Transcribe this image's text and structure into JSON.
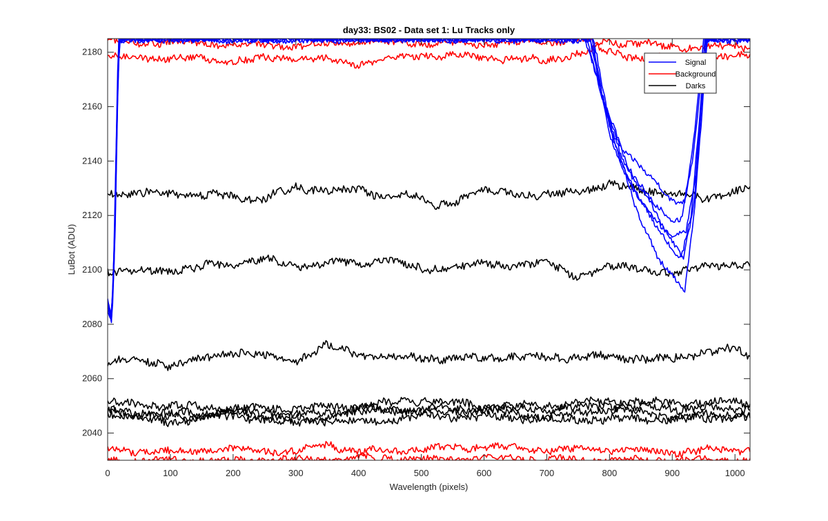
{
  "chart_data": {
    "type": "line",
    "title": "day33: BS02 - Data set 1: Lu Tracks only",
    "xlabel": "Wavelength (pixels)",
    "ylabel": "LuBot (ADU)",
    "xlim": [
      0,
      1024
    ],
    "ylim": [
      2030,
      2185
    ],
    "xticks": [
      0,
      100,
      200,
      300,
      400,
      500,
      600,
      700,
      800,
      900,
      1000
    ],
    "yticks": [
      2040,
      2060,
      2080,
      2100,
      2120,
      2140,
      2160,
      2180
    ],
    "grid": false,
    "legend_position": "top-right",
    "legend": [
      {
        "label": "Signal",
        "color": "#0000ff"
      },
      {
        "label": "Background",
        "color": "#ff0000"
      },
      {
        "label": "Darks",
        "color": "#000000"
      }
    ],
    "series": [
      {
        "group": "Signal",
        "color": "#0000ff",
        "noise": 1.0,
        "points": [
          [
            0,
            2088
          ],
          [
            5,
            2082
          ],
          [
            8,
            2090
          ],
          [
            12,
            2120
          ],
          [
            18,
            2185
          ],
          [
            760,
            2185
          ],
          [
            790,
            2162
          ],
          [
            820,
            2145
          ],
          [
            850,
            2138
          ],
          [
            880,
            2130
          ],
          [
            905,
            2124
          ],
          [
            920,
            2126
          ],
          [
            935,
            2150
          ],
          [
            950,
            2185
          ],
          [
            1024,
            2185
          ]
        ]
      },
      {
        "group": "Signal",
        "color": "#0000ff",
        "noise": 1.0,
        "points": [
          [
            0,
            2086
          ],
          [
            6,
            2080
          ],
          [
            9,
            2095
          ],
          [
            14,
            2150
          ],
          [
            17,
            2185
          ],
          [
            768,
            2185
          ],
          [
            795,
            2158
          ],
          [
            830,
            2136
          ],
          [
            860,
            2126
          ],
          [
            890,
            2114
          ],
          [
            915,
            2106
          ],
          [
            930,
            2120
          ],
          [
            945,
            2160
          ],
          [
            952,
            2185
          ],
          [
            1024,
            2185
          ]
        ]
      },
      {
        "group": "Signal",
        "color": "#0000ff",
        "noise": 1.0,
        "points": [
          [
            0,
            2085
          ],
          [
            5,
            2081
          ],
          [
            10,
            2100
          ],
          [
            15,
            2160
          ],
          [
            18,
            2185
          ],
          [
            772,
            2185
          ],
          [
            800,
            2150
          ],
          [
            835,
            2130
          ],
          [
            870,
            2118
          ],
          [
            900,
            2108
          ],
          [
            918,
            2104
          ],
          [
            935,
            2125
          ],
          [
            950,
            2170
          ],
          [
            955,
            2185
          ],
          [
            1024,
            2185
          ]
        ]
      },
      {
        "group": "Signal",
        "color": "#0000ff",
        "noise": 1.0,
        "points": [
          [
            0,
            2087
          ],
          [
            6,
            2083
          ],
          [
            11,
            2110
          ],
          [
            16,
            2170
          ],
          [
            19,
            2185
          ],
          [
            775,
            2185
          ],
          [
            805,
            2148
          ],
          [
            840,
            2128
          ],
          [
            875,
            2118
          ],
          [
            905,
            2112
          ],
          [
            922,
            2114
          ],
          [
            938,
            2135
          ],
          [
            948,
            2165
          ],
          [
            956,
            2185
          ],
          [
            1024,
            2185
          ]
        ]
      },
      {
        "group": "Signal",
        "color": "#0000ff",
        "noise": 1.0,
        "points": [
          [
            0,
            2089
          ],
          [
            7,
            2082
          ],
          [
            12,
            2115
          ],
          [
            17,
            2175
          ],
          [
            20,
            2185
          ],
          [
            770,
            2185
          ],
          [
            800,
            2152
          ],
          [
            840,
            2124
          ],
          [
            875,
            2106
          ],
          [
            905,
            2096
          ],
          [
            920,
            2092
          ],
          [
            935,
            2120
          ],
          [
            948,
            2160
          ],
          [
            955,
            2185
          ],
          [
            1024,
            2185
          ]
        ]
      },
      {
        "group": "Signal",
        "color": "#0000ff",
        "noise": 1.0,
        "points": [
          [
            0,
            2090
          ],
          [
            6,
            2084
          ],
          [
            11,
            2105
          ],
          [
            16,
            2165
          ],
          [
            19,
            2185
          ],
          [
            765,
            2185
          ],
          [
            792,
            2160
          ],
          [
            825,
            2140
          ],
          [
            860,
            2128
          ],
          [
            895,
            2118
          ],
          [
            915,
            2118
          ],
          [
            932,
            2140
          ],
          [
            946,
            2170
          ],
          [
            953,
            2185
          ],
          [
            1024,
            2185
          ]
        ]
      },
      {
        "group": "Background",
        "color": "#ff0000",
        "noise": 1.2,
        "points": [
          [
            0,
            2178
          ],
          [
            100,
            2178
          ],
          [
            200,
            2177
          ],
          [
            300,
            2178
          ],
          [
            400,
            2176
          ],
          [
            500,
            2179
          ],
          [
            600,
            2178
          ],
          [
            700,
            2177
          ],
          [
            780,
            2181
          ],
          [
            850,
            2178
          ],
          [
            950,
            2177
          ],
          [
            1024,
            2179
          ]
        ]
      },
      {
        "group": "Background",
        "color": "#ff0000",
        "noise": 1.2,
        "points": [
          [
            0,
            2184
          ],
          [
            200,
            2183
          ],
          [
            300,
            2182
          ],
          [
            400,
            2184
          ],
          [
            600,
            2183
          ],
          [
            700,
            2184
          ],
          [
            800,
            2184
          ],
          [
            900,
            2182
          ],
          [
            1024,
            2182
          ]
        ]
      },
      {
        "group": "Background",
        "color": "#ff0000",
        "noise": 1.2,
        "points": [
          [
            0,
            2034
          ],
          [
            100,
            2033
          ],
          [
            200,
            2034
          ],
          [
            300,
            2033
          ],
          [
            350,
            2036
          ],
          [
            400,
            2033
          ],
          [
            500,
            2034
          ],
          [
            600,
            2035
          ],
          [
            700,
            2034
          ],
          [
            800,
            2034
          ],
          [
            900,
            2033
          ],
          [
            1000,
            2034
          ],
          [
            1024,
            2034
          ]
        ]
      },
      {
        "group": "Background",
        "color": "#ff0000",
        "noise": 1.2,
        "points": [
          [
            0,
            2030
          ],
          [
            150,
            2030
          ],
          [
            300,
            2030
          ],
          [
            450,
            2031
          ],
          [
            500,
            2030
          ],
          [
            600,
            2031
          ],
          [
            800,
            2030
          ],
          [
            1024,
            2030
          ]
        ]
      },
      {
        "group": "Darks",
        "color": "#000000",
        "noise": 1.4,
        "points": [
          [
            0,
            2128
          ],
          [
            100,
            2128
          ],
          [
            200,
            2127
          ],
          [
            240,
            2126
          ],
          [
            300,
            2130
          ],
          [
            400,
            2129
          ],
          [
            440,
            2127
          ],
          [
            480,
            2128
          ],
          [
            520,
            2123
          ],
          [
            600,
            2129
          ],
          [
            700,
            2127
          ],
          [
            800,
            2131
          ],
          [
            900,
            2128
          ],
          [
            950,
            2126
          ],
          [
            1024,
            2130
          ]
        ]
      },
      {
        "group": "Darks",
        "color": "#000000",
        "noise": 1.4,
        "points": [
          [
            0,
            2100
          ],
          [
            50,
            2099
          ],
          [
            100,
            2100
          ],
          [
            150,
            2101
          ],
          [
            250,
            2104
          ],
          [
            300,
            2101
          ],
          [
            350,
            2103
          ],
          [
            400,
            2102
          ],
          [
            440,
            2104
          ],
          [
            500,
            2100
          ],
          [
            600,
            2102
          ],
          [
            700,
            2102
          ],
          [
            750,
            2098
          ],
          [
            800,
            2101
          ],
          [
            850,
            2101
          ],
          [
            900,
            2098
          ],
          [
            950,
            2102
          ],
          [
            1024,
            2101
          ]
        ]
      },
      {
        "group": "Darks",
        "color": "#000000",
        "noise": 1.4,
        "points": [
          [
            0,
            2066
          ],
          [
            50,
            2067
          ],
          [
            100,
            2065
          ],
          [
            150,
            2067
          ],
          [
            200,
            2070
          ],
          [
            250,
            2068
          ],
          [
            300,
            2067
          ],
          [
            350,
            2072
          ],
          [
            400,
            2069
          ],
          [
            450,
            2068
          ],
          [
            500,
            2068
          ],
          [
            550,
            2067
          ],
          [
            600,
            2068
          ],
          [
            700,
            2068
          ],
          [
            800,
            2068
          ],
          [
            900,
            2067
          ],
          [
            950,
            2070
          ],
          [
            1000,
            2071
          ],
          [
            1024,
            2067
          ]
        ]
      },
      {
        "group": "Darks",
        "color": "#000000",
        "noise": 1.4,
        "points": [
          [
            0,
            2051
          ],
          [
            100,
            2050
          ],
          [
            200,
            2049
          ],
          [
            300,
            2049
          ],
          [
            400,
            2050
          ],
          [
            500,
            2052
          ],
          [
            600,
            2050
          ],
          [
            700,
            2050
          ],
          [
            800,
            2052
          ],
          [
            900,
            2051
          ],
          [
            1024,
            2051
          ]
        ]
      },
      {
        "group": "Darks",
        "color": "#000000",
        "noise": 1.4,
        "points": [
          [
            0,
            2048
          ],
          [
            100,
            2047
          ],
          [
            200,
            2048
          ],
          [
            300,
            2047
          ],
          [
            400,
            2048
          ],
          [
            500,
            2049
          ],
          [
            600,
            2049
          ],
          [
            700,
            2049
          ],
          [
            800,
            2050
          ],
          [
            900,
            2049
          ],
          [
            1024,
            2049
          ]
        ]
      },
      {
        "group": "Darks",
        "color": "#000000",
        "noise": 1.4,
        "points": [
          [
            0,
            2049
          ],
          [
            50,
            2046
          ],
          [
            100,
            2043
          ],
          [
            150,
            2046
          ],
          [
            200,
            2048
          ],
          [
            250,
            2046
          ],
          [
            300,
            2043
          ],
          [
            350,
            2046
          ],
          [
            400,
            2049
          ],
          [
            500,
            2048
          ],
          [
            600,
            2048
          ],
          [
            700,
            2046
          ],
          [
            800,
            2049
          ],
          [
            900,
            2046
          ],
          [
            1024,
            2047
          ]
        ]
      },
      {
        "group": "Darks",
        "color": "#000000",
        "noise": 1.4,
        "points": [
          [
            0,
            2047
          ],
          [
            100,
            2046
          ],
          [
            200,
            2046
          ],
          [
            300,
            2045
          ],
          [
            400,
            2044
          ],
          [
            500,
            2046
          ],
          [
            600,
            2046
          ],
          [
            700,
            2045
          ],
          [
            800,
            2045
          ],
          [
            900,
            2045
          ],
          [
            1024,
            2046
          ]
        ]
      }
    ]
  }
}
